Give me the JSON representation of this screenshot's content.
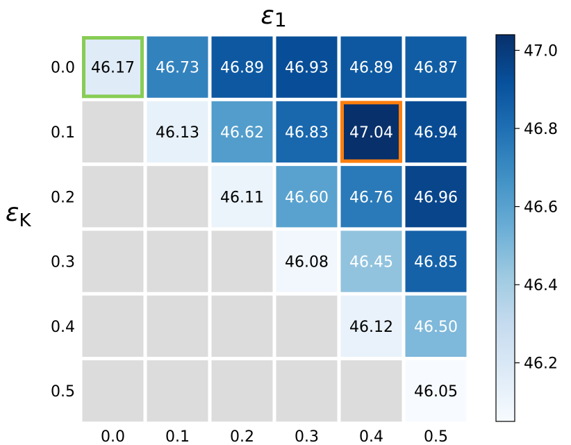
{
  "chart_data": {
    "type": "heatmap",
    "xlabel": "ε",
    "xlabel_sub": "1",
    "ylabel": "ε",
    "ylabel_sub": "K",
    "x_categories": [
      "0.0",
      "0.1",
      "0.2",
      "0.3",
      "0.4",
      "0.5"
    ],
    "y_categories": [
      "0.0",
      "0.1",
      "0.2",
      "0.3",
      "0.4",
      "0.5"
    ],
    "values": [
      [
        46.17,
        46.73,
        46.89,
        46.93,
        46.89,
        46.87
      ],
      [
        null,
        46.13,
        46.62,
        46.83,
        47.04,
        46.94
      ],
      [
        null,
        null,
        46.11,
        46.6,
        46.76,
        46.96
      ],
      [
        null,
        null,
        null,
        46.08,
        46.45,
        46.85
      ],
      [
        null,
        null,
        null,
        null,
        46.12,
        46.5
      ],
      [
        null,
        null,
        null,
        null,
        null,
        46.05
      ]
    ],
    "colormap": "Blues",
    "vmin": 46.05,
    "vmax": 47.04,
    "colorbar_ticks": [
      "46.2",
      "46.4",
      "46.6",
      "46.8",
      "47.0"
    ],
    "colorbar_tick_values": [
      46.2,
      46.4,
      46.6,
      46.8,
      47.0
    ],
    "highlights": [
      {
        "row": 0,
        "col": 0,
        "color": "#88cc55"
      },
      {
        "row": 1,
        "col": 4,
        "color": "#ff7f0e"
      }
    ],
    "masked_color": "#dcdcdc"
  }
}
